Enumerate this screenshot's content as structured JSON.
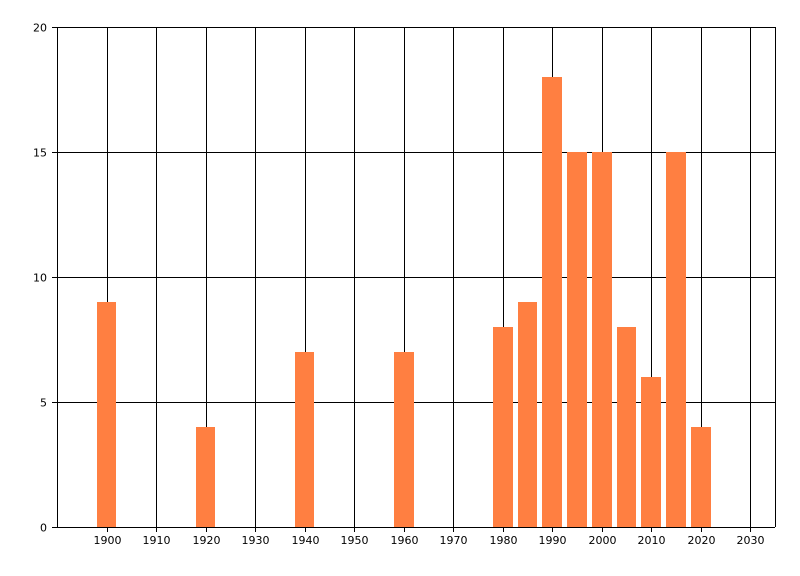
{
  "chart_data": {
    "type": "bar",
    "title": "",
    "xlabel": "",
    "ylabel": "",
    "xlim": [
      1890,
      2035
    ],
    "ylim": [
      0,
      20
    ],
    "x_ticks": [
      1900,
      1910,
      1920,
      1930,
      1940,
      1950,
      1960,
      1970,
      1980,
      1990,
      2000,
      2010,
      2020,
      2030
    ],
    "y_ticks": [
      0,
      5,
      10,
      15,
      20
    ],
    "grid": true,
    "bar_color": "#FF7F41",
    "bar_width_years": 4,
    "x": [
      1900,
      1920,
      1940,
      1960,
      1980,
      1985,
      1990,
      1995,
      2000,
      2005,
      2010,
      2015,
      2020
    ],
    "values": [
      9,
      4,
      7,
      7,
      8,
      9,
      18,
      15,
      15,
      8,
      6,
      15,
      4
    ]
  }
}
